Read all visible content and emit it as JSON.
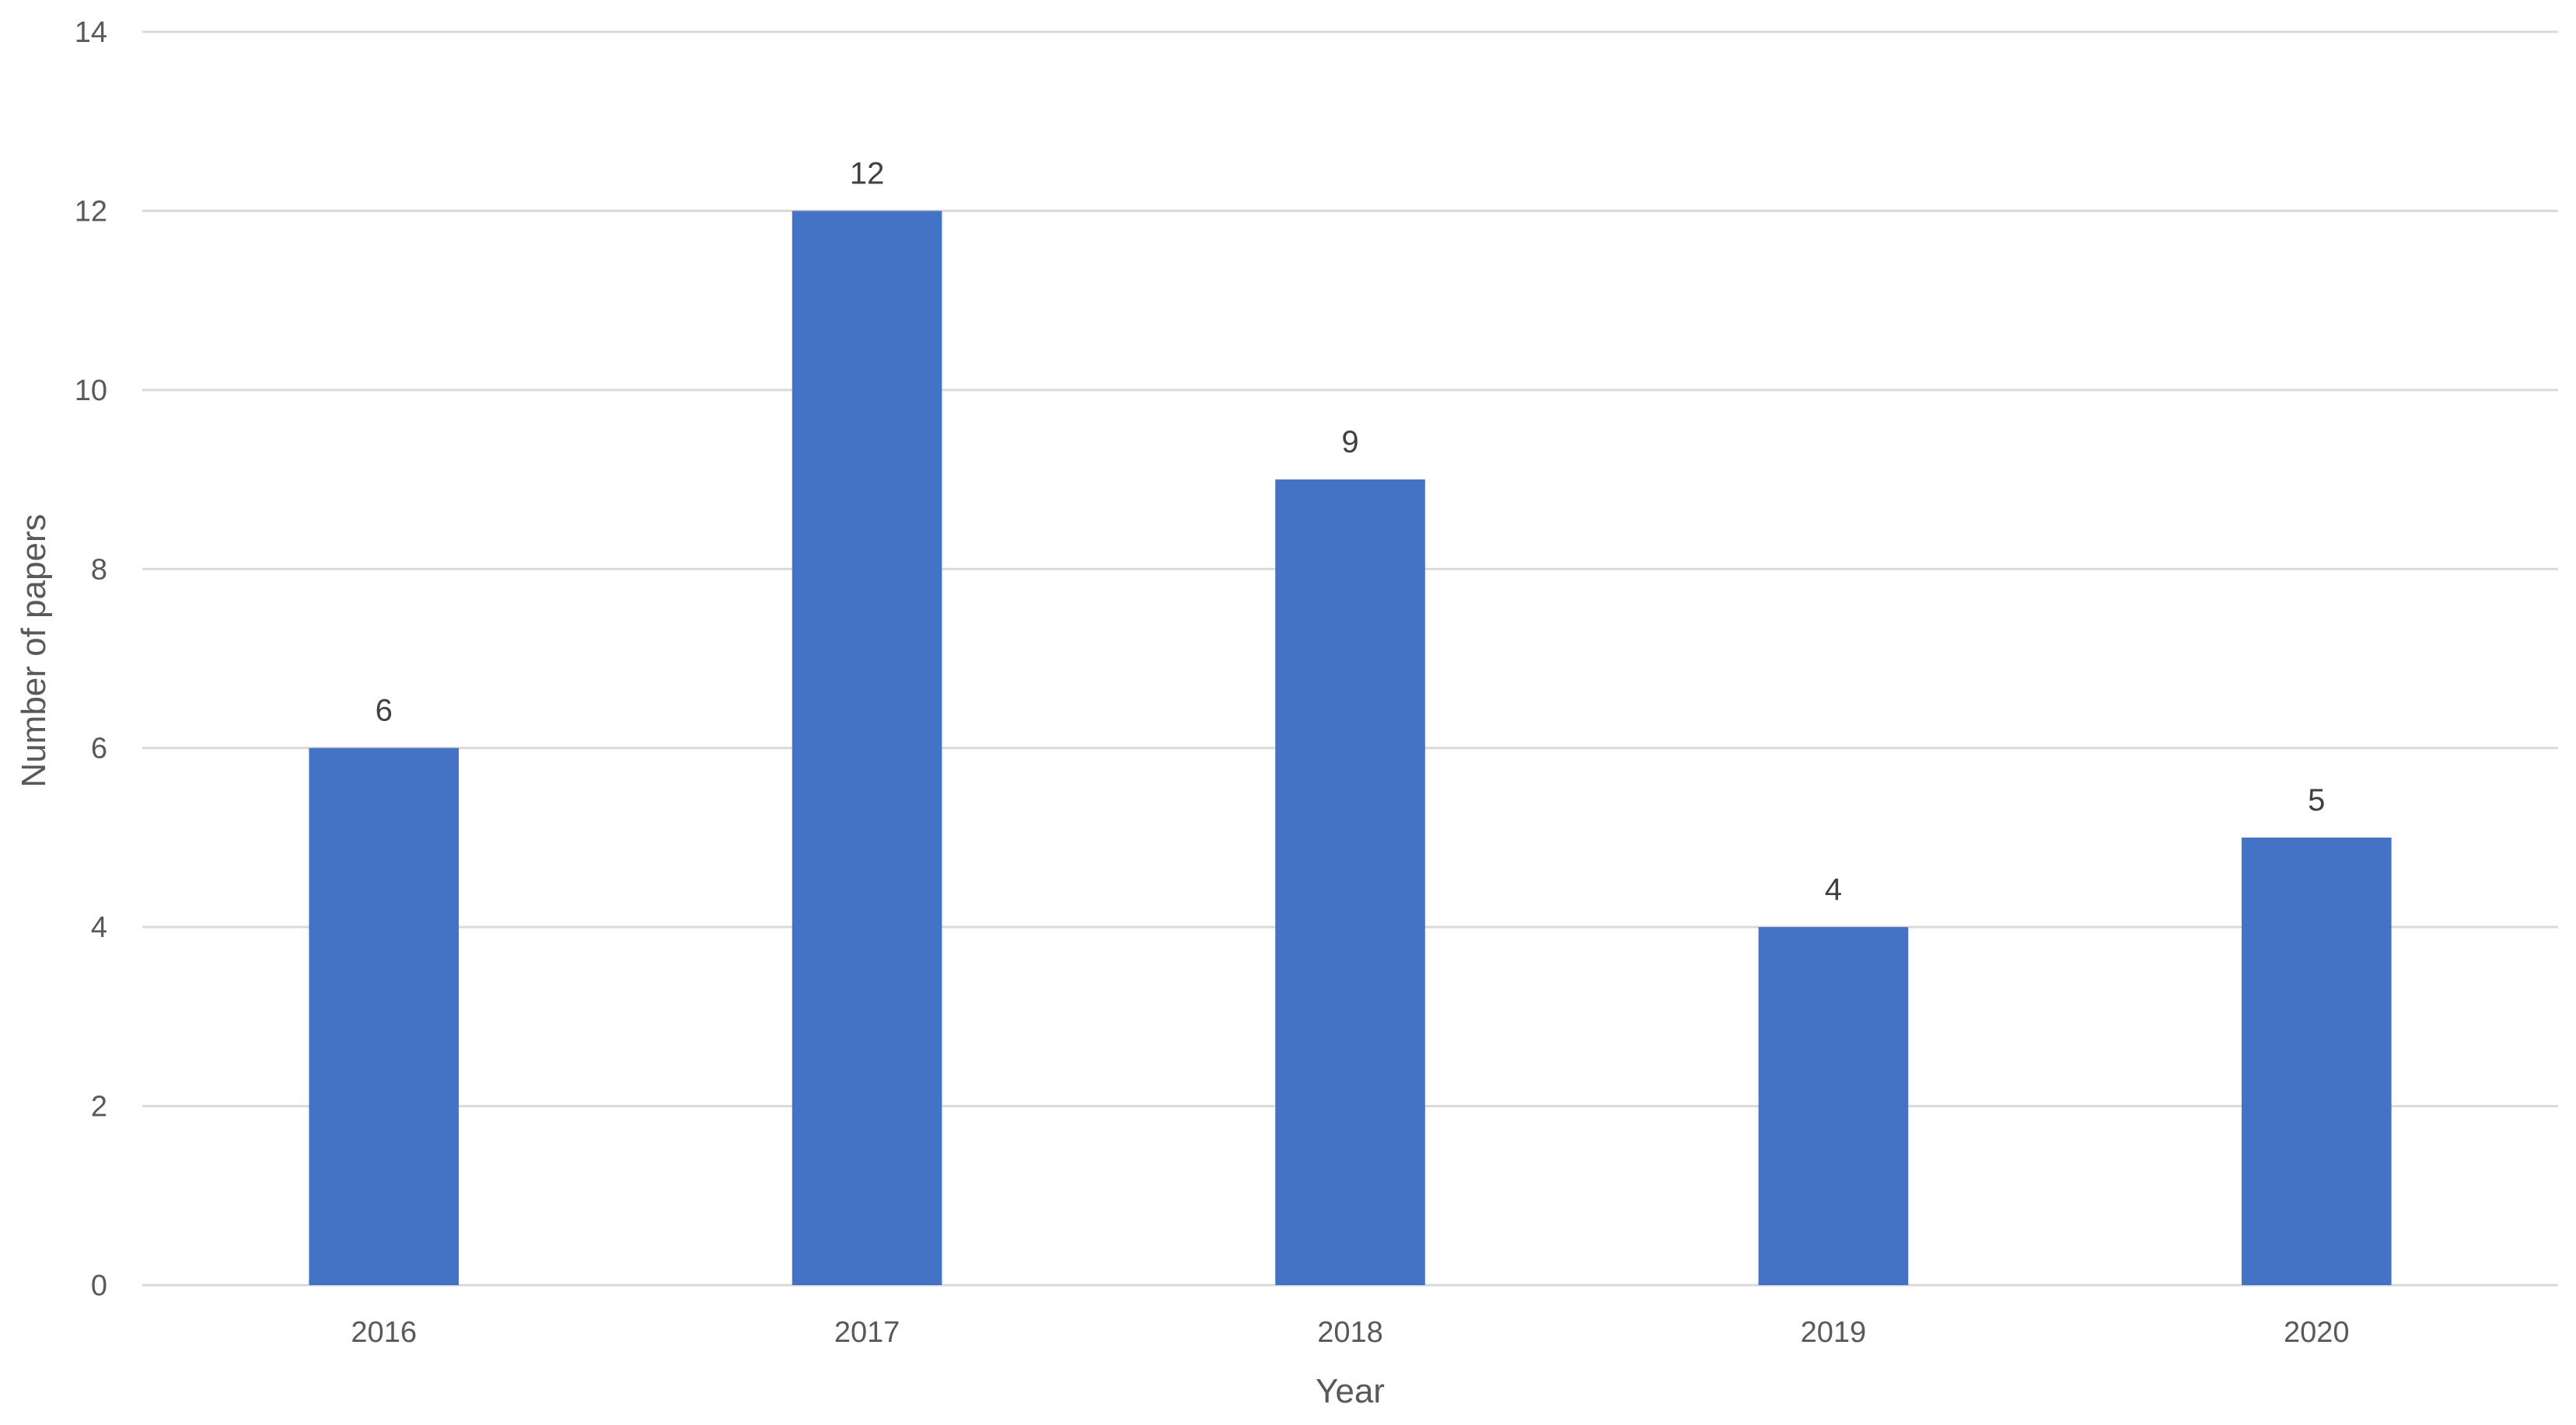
{
  "chart_data": {
    "type": "bar",
    "title": "",
    "xlabel": "Year",
    "ylabel": "Number of papers",
    "categories": [
      "2016",
      "2017",
      "2018",
      "2019",
      "2020"
    ],
    "values": [
      6,
      12,
      9,
      4,
      5
    ],
    "data_labels": [
      "6",
      "12",
      "9",
      "4",
      "5"
    ],
    "ylim": [
      0,
      14
    ],
    "yticks": [
      "0",
      "2",
      "4",
      "6",
      "8",
      "10",
      "12",
      "14"
    ],
    "ytick_values": [
      0,
      2,
      4,
      6,
      8,
      10,
      12,
      14
    ],
    "grid": true,
    "legend": "none",
    "colors": {
      "bar": "#4472C4",
      "grid": "#D9D9D9",
      "axis_text": "#595959",
      "data_label": "#404040"
    }
  }
}
